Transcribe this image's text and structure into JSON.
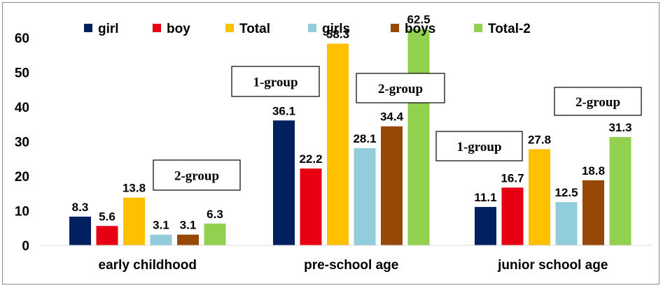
{
  "chart_data": {
    "type": "bar",
    "title": "",
    "xlabel": "",
    "ylabel": "",
    "ylim": [
      0,
      60
    ],
    "yticks": [
      0,
      10,
      20,
      30,
      40,
      50,
      60
    ],
    "grid": false,
    "legend_position": "top",
    "categories": [
      "early childhood",
      "pre-school age",
      "junior school age"
    ],
    "series": [
      {
        "name": "girl",
        "color": "#002060",
        "values": [
          8.3,
          36.1,
          11.1
        ],
        "labels": [
          "8.3",
          "36.1",
          "11.1"
        ]
      },
      {
        "name": "boy",
        "color": "#e60012",
        "values": [
          5.6,
          22.2,
          16.7
        ],
        "labels": [
          "5.6",
          "22.2",
          "16.7"
        ]
      },
      {
        "name": "Total",
        "color": "#ffc000",
        "values": [
          13.8,
          58.3,
          27.8
        ],
        "labels": [
          "13.8",
          "58.3",
          "27.8"
        ]
      },
      {
        "name": "girls",
        "color": "#92cddc",
        "values": [
          3.1,
          28.1,
          12.5
        ],
        "labels": [
          "3.1",
          "28.1",
          "12.5"
        ]
      },
      {
        "name": "boys",
        "color": "#974706",
        "values": [
          3.1,
          34.4,
          18.8
        ],
        "labels": [
          "3.1",
          "34.4",
          "18.8"
        ]
      },
      {
        "name": "Total-2",
        "color": "#92d050",
        "values": [
          6.3,
          62.5,
          31.3
        ],
        "labels": [
          "6.3",
          "62.5",
          "31.3"
        ]
      }
    ],
    "annotations": [
      {
        "text": "2-group",
        "category": "early childhood"
      },
      {
        "text": "1-group",
        "category": "pre-school age"
      },
      {
        "text": "2-group",
        "category": "pre-school age"
      },
      {
        "text": "1-group",
        "category": "junior school age"
      },
      {
        "text": "2-group",
        "category": "junior school age"
      }
    ]
  }
}
